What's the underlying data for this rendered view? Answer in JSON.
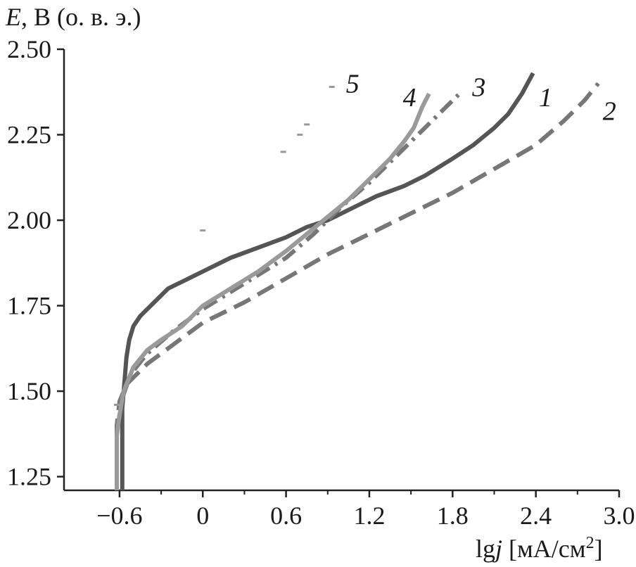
{
  "chart_data": {
    "type": "line",
    "ylabel_var": "E",
    "ylabel_rest": ", В (о. в. э.)",
    "xlabel_prefix": "lg",
    "xlabel_var": "j",
    "xlabel_unit": " [мА/см",
    "xlabel_sup": "2",
    "xlabel_close": "]",
    "xlim": [
      -1.0,
      3.0
    ],
    "ylim": [
      1.21,
      2.5
    ],
    "grid": false,
    "x_ticks": [
      -0.6,
      0,
      0.6,
      1.2,
      1.8,
      2.4,
      3.0
    ],
    "x_tick_labels": [
      "−0.6",
      "0",
      "0.6",
      "1.2",
      "1.8",
      "2.4",
      "3.0"
    ],
    "y_ticks": [
      1.25,
      1.5,
      1.75,
      2.0,
      2.25,
      2.5
    ],
    "y_tick_labels": [
      "1.25",
      "1.50",
      "1.75",
      "2.00",
      "2.25",
      "2.50"
    ],
    "series": [
      {
        "name": "1",
        "color": "#555555",
        "style": "solid",
        "points": [
          [
            -0.58,
            1.21
          ],
          [
            -0.58,
            1.45
          ],
          [
            -0.57,
            1.5
          ],
          [
            -0.56,
            1.55
          ],
          [
            -0.55,
            1.6
          ],
          [
            -0.53,
            1.65
          ],
          [
            -0.5,
            1.69
          ],
          [
            -0.45,
            1.72
          ],
          [
            -0.35,
            1.76
          ],
          [
            -0.25,
            1.8
          ],
          [
            -0.1,
            1.83
          ],
          [
            0.05,
            1.86
          ],
          [
            0.2,
            1.89
          ],
          [
            0.4,
            1.92
          ],
          [
            0.6,
            1.95
          ],
          [
            0.75,
            1.98
          ],
          [
            0.9,
            2.0
          ],
          [
            1.05,
            2.03
          ],
          [
            1.25,
            2.07
          ],
          [
            1.45,
            2.1
          ],
          [
            1.6,
            2.13
          ],
          [
            1.8,
            2.18
          ],
          [
            1.95,
            2.22
          ],
          [
            2.1,
            2.27
          ],
          [
            2.2,
            2.31
          ],
          [
            2.3,
            2.37
          ],
          [
            2.38,
            2.43
          ]
        ]
      },
      {
        "name": "2",
        "color": "#777777",
        "style": "dashed",
        "points": [
          [
            -0.62,
            1.21
          ],
          [
            -0.62,
            1.4
          ],
          [
            -0.6,
            1.47
          ],
          [
            -0.55,
            1.52
          ],
          [
            -0.4,
            1.58
          ],
          [
            -0.2,
            1.64
          ],
          [
            0.0,
            1.7
          ],
          [
            0.3,
            1.76
          ],
          [
            0.6,
            1.83
          ],
          [
            0.9,
            1.9
          ],
          [
            1.2,
            1.96
          ],
          [
            1.5,
            2.02
          ],
          [
            1.8,
            2.08
          ],
          [
            2.1,
            2.15
          ],
          [
            2.4,
            2.22
          ],
          [
            2.6,
            2.29
          ],
          [
            2.75,
            2.35
          ],
          [
            2.85,
            2.4
          ]
        ]
      },
      {
        "name": "3",
        "color": "#777777",
        "style": "dashdot",
        "points": [
          [
            -0.62,
            1.21
          ],
          [
            -0.62,
            1.38
          ],
          [
            -0.58,
            1.48
          ],
          [
            -0.52,
            1.55
          ],
          [
            -0.4,
            1.61
          ],
          [
            -0.2,
            1.68
          ],
          [
            0.0,
            1.74
          ],
          [
            0.2,
            1.79
          ],
          [
            0.4,
            1.84
          ],
          [
            0.6,
            1.89
          ],
          [
            0.8,
            1.96
          ],
          [
            1.0,
            2.04
          ],
          [
            1.2,
            2.11
          ],
          [
            1.4,
            2.19
          ],
          [
            1.6,
            2.27
          ],
          [
            1.75,
            2.33
          ],
          [
            1.85,
            2.37
          ]
        ]
      },
      {
        "name": "4",
        "color": "#9a9a9a",
        "style": "solid",
        "points": [
          [
            -0.62,
            1.21
          ],
          [
            -0.62,
            1.37
          ],
          [
            -0.6,
            1.43
          ],
          [
            -0.57,
            1.5
          ],
          [
            -0.5,
            1.57
          ],
          [
            -0.4,
            1.62
          ],
          [
            -0.3,
            1.65
          ],
          [
            -0.15,
            1.69
          ],
          [
            0.0,
            1.75
          ],
          [
            0.2,
            1.8
          ],
          [
            0.4,
            1.85
          ],
          [
            0.6,
            1.91
          ],
          [
            0.75,
            1.96
          ],
          [
            0.9,
            2.01
          ],
          [
            1.05,
            2.06
          ],
          [
            1.2,
            2.12
          ],
          [
            1.35,
            2.18
          ],
          [
            1.45,
            2.23
          ],
          [
            1.52,
            2.27
          ],
          [
            1.58,
            2.33
          ],
          [
            1.63,
            2.37
          ]
        ]
      },
      {
        "name": "5",
        "color": "#999999",
        "style": "dotted-sparse",
        "points": [
          [
            -0.62,
            1.46
          ],
          [
            0.0,
            1.97
          ],
          [
            0.58,
            2.2
          ],
          [
            0.7,
            2.25
          ],
          [
            0.75,
            2.28
          ],
          [
            0.93,
            2.39
          ]
        ]
      }
    ],
    "curve_labels": [
      {
        "text": "1",
        "x": 2.47,
        "y": 2.36
      },
      {
        "text": "2",
        "x": 2.93,
        "y": 2.32
      },
      {
        "text": "3",
        "x": 1.99,
        "y": 2.39
      },
      {
        "text": "4",
        "x": 1.49,
        "y": 2.36
      },
      {
        "text": "5",
        "x": 1.08,
        "y": 2.4
      }
    ]
  }
}
